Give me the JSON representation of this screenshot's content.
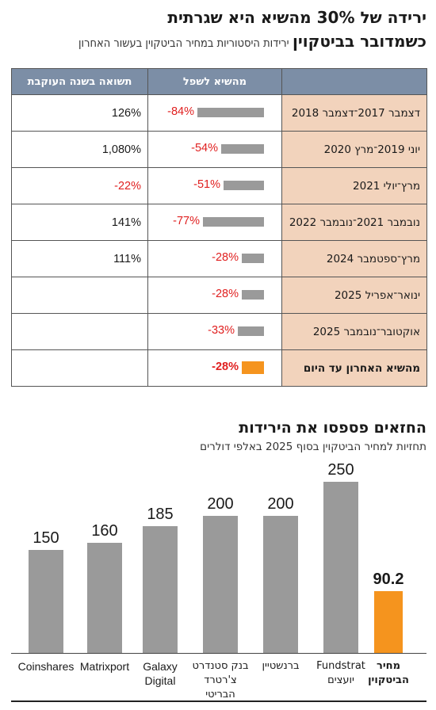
{
  "title": "ירידה של 30% מהשיא היא שגרתית",
  "subtitle_bold": "כשמדובר בביטקוין",
  "subtitle_normal": "ירידות היסטוריות במחיר הביטקוין בעשור האחרון",
  "table": {
    "col_drawdown": "מהשיא לשפל",
    "col_recovery": "תשואה בשנה העוקבת",
    "rows": [
      {
        "period": "דצמבר 2017־דצמבר 2018",
        "drawdown": -84,
        "drawdown_label": "-84%",
        "recovery": "126%"
      },
      {
        "period": "יוני 2019־מרץ 2020",
        "drawdown": -54,
        "drawdown_label": "-54%",
        "recovery": "1,080%"
      },
      {
        "period": "מרץ־יולי 2021",
        "drawdown": -51,
        "drawdown_label": "-51%",
        "recovery": "-22%"
      },
      {
        "period": "נובמבר 2021־נובמבר 2022",
        "drawdown": -77,
        "drawdown_label": "-77%",
        "recovery": "141%"
      },
      {
        "period": "מרץ־ספטמבר 2024",
        "drawdown": -28,
        "drawdown_label": "-28%",
        "recovery": "111%"
      },
      {
        "period": "ינואר־אפריל 2025",
        "drawdown": -28,
        "drawdown_label": "-28%",
        "recovery": ""
      },
      {
        "period": "אוקטובר־נובמבר 2025",
        "drawdown": -33,
        "drawdown_label": "-33%",
        "recovery": ""
      },
      {
        "period": "מהשיא האחרון עד היום",
        "drawdown": -28,
        "drawdown_label": "-28%",
        "recovery": ""
      }
    ]
  },
  "title2": "החזאים פספסו את הירידות",
  "subtitle2": "תחזיות למחיר הביטקוין בסוף 2025 באלפי דולרים",
  "chart_data": {
    "type": "bar",
    "categories": [
      "Coinshares",
      "Matrixport",
      "Galaxy\nDigital",
      "בנק סטנדרט\nצ'רטרד\nהבריטי",
      "ברנשטיין",
      "Fundstrat\nיועצים",
      "מחיר\nהביטקוין"
    ],
    "values": [
      150,
      160,
      185,
      200,
      200,
      250,
      90.2
    ],
    "value_labels": [
      "150",
      "160",
      "185",
      "200",
      "200",
      "250",
      "90.2"
    ],
    "highlight_index": 6,
    "colors": {
      "bar": "#9a9a9a",
      "highlight": "#f5941e"
    }
  },
  "colors": {
    "header": "#7c8ea6",
    "period_cell": "#f2d3bc",
    "negative": "#e02020"
  }
}
